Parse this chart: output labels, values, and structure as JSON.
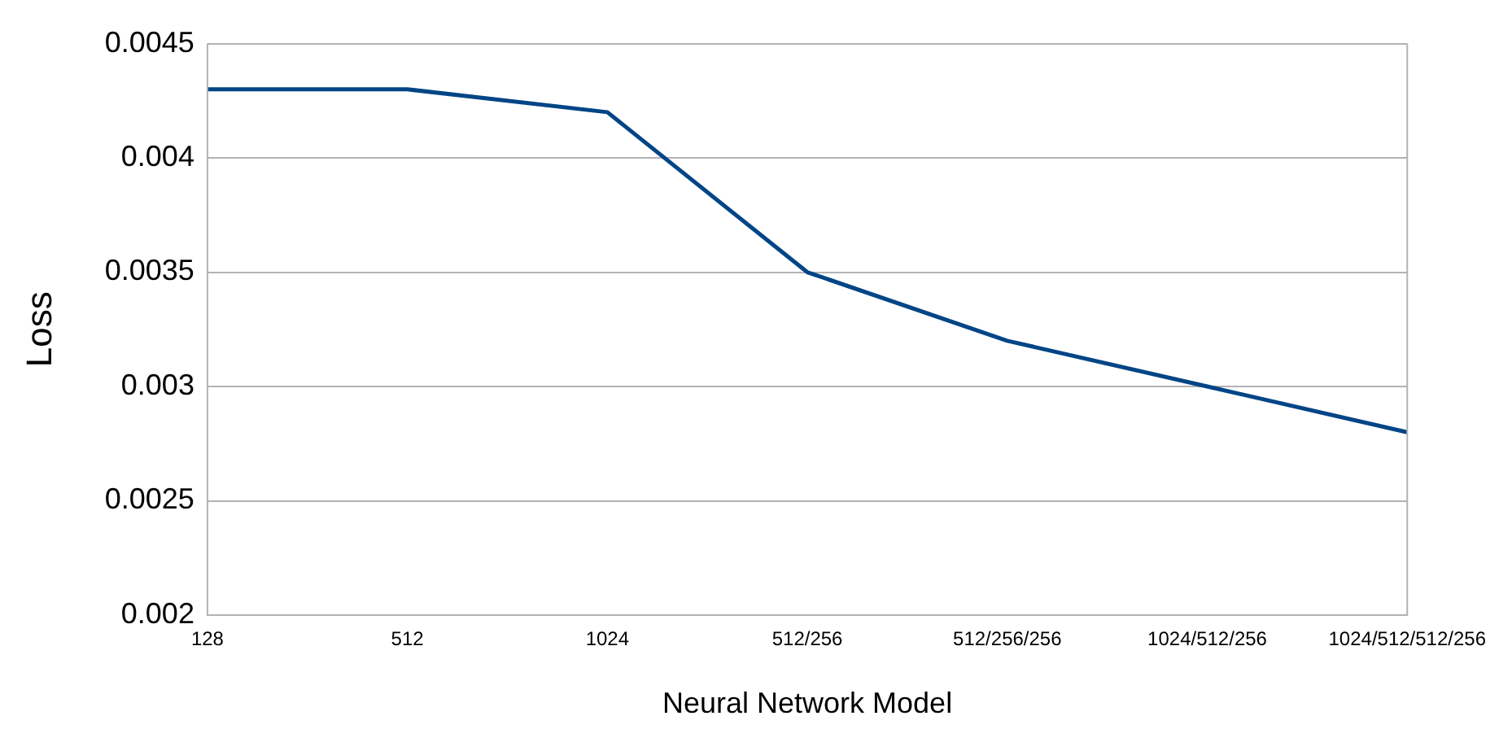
{
  "chart_data": {
    "type": "line",
    "xlabel": "Neural Network Model",
    "ylabel": "Loss",
    "categories": [
      "128",
      "512",
      "1024",
      "512/256",
      "512/256/256",
      "1024/512/256",
      "1024/512/512/256"
    ],
    "series": [
      {
        "color": "#004586",
        "values": [
          0.0043,
          0.0043,
          0.0042,
          0.0035,
          0.0032,
          0.003,
          0.0028
        ]
      }
    ],
    "ylim": [
      0.002,
      0.0045
    ],
    "yticks": [
      0.002,
      0.0025,
      0.003,
      0.0035,
      0.004,
      0.0045
    ],
    "grid": "y",
    "legend": false,
    "marker": "none",
    "line_style": "solid"
  }
}
